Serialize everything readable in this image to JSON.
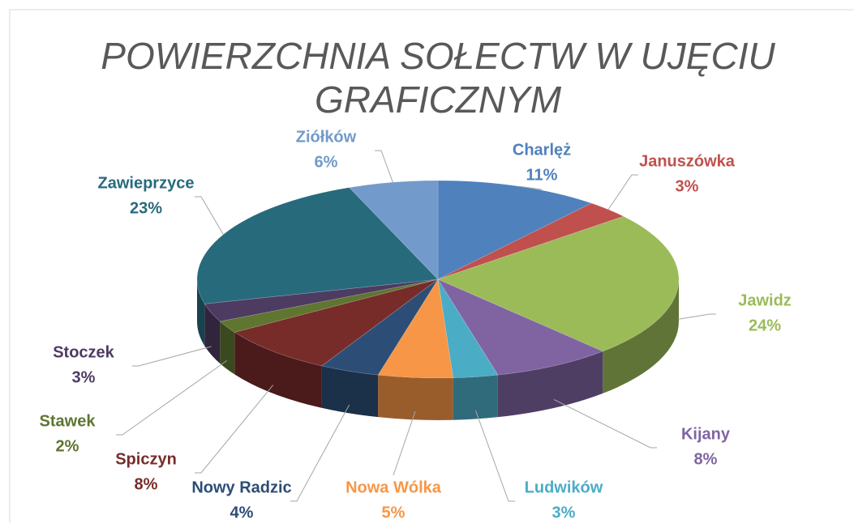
{
  "chart_data": {
    "type": "pie3d",
    "title": "POWIERZCHNIA SOŁECTW W UJĘCIU GRAFICZNYM",
    "categories": [
      "Charlęż",
      "Januszówka",
      "Jawidz",
      "Kijany",
      "Ludwików",
      "Nowa Wólka",
      "Nowy Radzic",
      "Spiczyn",
      "Stawek",
      "Stoczek",
      "Zawieprzyce",
      "Ziółków"
    ],
    "values": [
      11,
      3,
      24,
      8,
      3,
      5,
      4,
      8,
      2,
      3,
      23,
      6
    ],
    "value_labels": [
      "11%",
      "3%",
      "24%",
      "8%",
      "3%",
      "5%",
      "4%",
      "8%",
      "2%",
      "3%",
      "23%",
      "6%"
    ],
    "colors": [
      "#4f81bd",
      "#c0504d",
      "#9bbb59",
      "#8064a2",
      "#4bacc6",
      "#f79646",
      "#2c4d75",
      "#772c2a",
      "#5f7530",
      "#4d3b62",
      "#276a7c",
      "#729aca"
    ]
  }
}
